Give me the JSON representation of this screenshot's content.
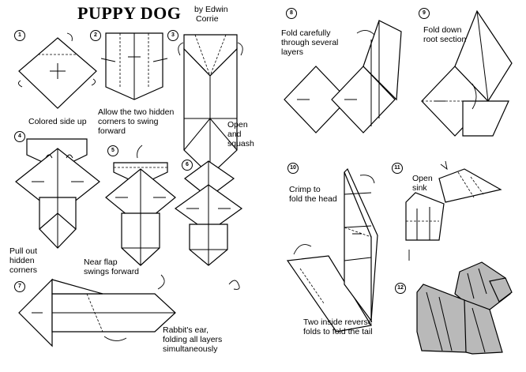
{
  "title": "PUPPY DOG",
  "author": {
    "line1": "by Edwin",
    "line2": "Corrie"
  },
  "steps": [
    {
      "num": "1",
      "caption": "Colored side up"
    },
    {
      "num": "2",
      "caption": "Allow the two hidden\ncorners to swing\nforward"
    },
    {
      "num": "3",
      "caption": "Open\nand\nsquash"
    },
    {
      "num": "4",
      "caption": "Pull out\nhidden\ncorners"
    },
    {
      "num": "5",
      "caption": "Near flap\nswings forward"
    },
    {
      "num": "6",
      "caption": ""
    },
    {
      "num": "7",
      "caption": "Rabbit's ear,\nfolding all layers\nsimultaneously"
    },
    {
      "num": "8",
      "caption": "Fold carefully\nthrough several\nlayers"
    },
    {
      "num": "9",
      "caption": "Fold down\nroot section"
    },
    {
      "num": "10",
      "caption": "Crimp to\nfold the head"
    },
    {
      "num": "11",
      "caption": "Open\nsink"
    },
    {
      "num": "12",
      "caption": ""
    }
  ],
  "extra_caption": "Two inside reverse\nfolds to fold the tail"
}
